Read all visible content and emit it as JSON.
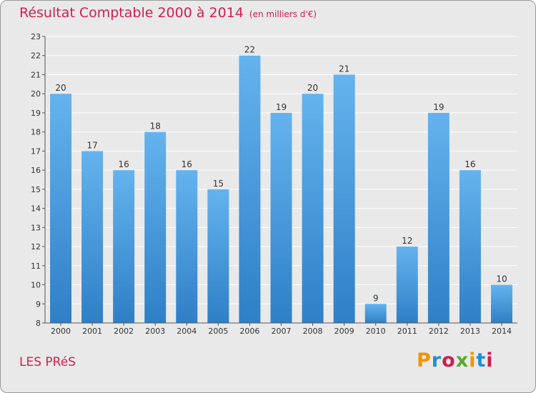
{
  "header": {
    "title": "Résultat Comptable 2000 à 2014",
    "subtitle": "(en milliers d'€)"
  },
  "footer": {
    "commune": "LES PRéS",
    "logo": "Proxiti",
    "logo_colors": [
      "#f29400",
      "#1f8fd3",
      "#cc1f4e",
      "#59a82f",
      "#f29400",
      "#1f8fd3",
      "#cc1f4e"
    ]
  },
  "chart_data": {
    "type": "bar",
    "title": "Résultat Comptable 2000 à 2014",
    "subtitle": "(en milliers d'€)",
    "categories": [
      "2000",
      "2001",
      "2002",
      "2003",
      "2004",
      "2005",
      "2006",
      "2007",
      "2008",
      "2009",
      "2010",
      "2011",
      "2012",
      "2013",
      "2014"
    ],
    "values": [
      20,
      17,
      16,
      18,
      16,
      15,
      22,
      19,
      20,
      21,
      9,
      12,
      19,
      16,
      10
    ],
    "yticks": [
      "8",
      "9",
      "10",
      "11",
      "12",
      "13",
      "14",
      "15",
      "16",
      "17",
      "18",
      "19",
      "20",
      "21",
      "22",
      "23"
    ],
    "ylim": [
      8,
      23
    ],
    "grid": true,
    "bar_color": "#4a9fe0",
    "bar_color_top": "#64b3ee",
    "bar_color_bottom": "#2f7fc6"
  }
}
